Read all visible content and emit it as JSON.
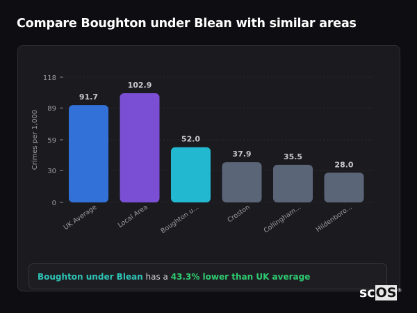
{
  "title": "Compare Boughton under Blean with similar areas",
  "chart_data": {
    "type": "bar",
    "categories": [
      "UK Average",
      "Local Area",
      "Boughton u...",
      "Croston",
      "Collingham...",
      "Hildenboro..."
    ],
    "values": [
      91.7,
      102.9,
      52.0,
      37.9,
      35.5,
      28.0
    ],
    "value_labels": [
      "91.7",
      "102.9",
      "52.0",
      "37.9",
      "35.5",
      "28.0"
    ],
    "colors": [
      "#3272d8",
      "#7b4fd4",
      "#22b8cf",
      "#5a6578",
      "#5a6578",
      "#5a6578"
    ],
    "ylabel": "Crimes per 1,000",
    "yticks": [
      0,
      30,
      59,
      89,
      118
    ],
    "ylim": [
      0,
      118
    ],
    "grid": true
  },
  "summary": {
    "area": "Boughton under Blean",
    "middle": " has a ",
    "comparison": "43.3% lower than UK average"
  },
  "logo": {
    "text1": "sc",
    "text2": "OS",
    "mark": "®"
  }
}
